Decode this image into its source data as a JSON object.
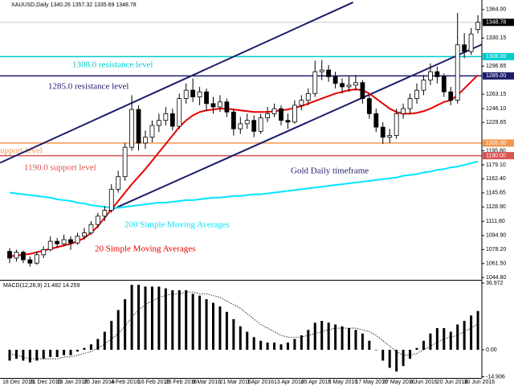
{
  "chart_data": [
    {
      "type": "candlestick",
      "title": "XAUUSD,Daily  1340.26 1357.32 1335.69 1348.78",
      "annotation": "Gold Daily timeframe",
      "categories": [
        "18 Dec 2015",
        null,
        null,
        null,
        "31 Dec 2015",
        null,
        null,
        null,
        "13 Jan 2016",
        null,
        null,
        null,
        "25 Jan 2016",
        null,
        null,
        null,
        "4 Feb 2016",
        null,
        null,
        null,
        "16 Feb 2016",
        null,
        null,
        null,
        "26 Feb 2016",
        null,
        null,
        null,
        "9 Mar 2016",
        null,
        null,
        null,
        "21 Mar 2016",
        null,
        null,
        null,
        "1 Apr 2016",
        null,
        null,
        null,
        "13 Apr 2016",
        null,
        null,
        null,
        "25 Apr 2016",
        null,
        null,
        null,
        "5 May 2016",
        null,
        null,
        null,
        "17 May 2016",
        null,
        null,
        null,
        "27 May 2016",
        null,
        null,
        null,
        "8 Jun 2016",
        null,
        null,
        null,
        "20 Jun 2016",
        null,
        null,
        null,
        "30 Jun 2016",
        null
      ],
      "candles": [
        [
          1076,
          1080,
          1062,
          1068
        ],
        [
          1068,
          1078,
          1064,
          1075
        ],
        [
          1075,
          1077,
          1062,
          1066
        ],
        [
          1066,
          1070,
          1058,
          1062
        ],
        [
          1062,
          1076,
          1060,
          1072
        ],
        [
          1072,
          1082,
          1068,
          1078
        ],
        [
          1078,
          1094,
          1076,
          1088
        ],
        [
          1088,
          1092,
          1080,
          1085
        ],
        [
          1085,
          1096,
          1082,
          1090
        ],
        [
          1090,
          1094,
          1078,
          1086
        ],
        [
          1086,
          1098,
          1084,
          1094
        ],
        [
          1094,
          1104,
          1090,
          1098
        ],
        [
          1098,
          1112,
          1096,
          1108
        ],
        [
          1108,
          1122,
          1104,
          1118
        ],
        [
          1118,
          1130,
          1112,
          1125
        ],
        [
          1125,
          1156,
          1122,
          1150
        ],
        [
          1150,
          1172,
          1146,
          1165
        ],
        [
          1165,
          1205,
          1160,
          1200
        ],
        [
          1200,
          1262,
          1196,
          1245
        ],
        [
          1245,
          1250,
          1196,
          1205
        ],
        [
          1205,
          1220,
          1198,
          1212
        ],
        [
          1212,
          1232,
          1206,
          1226
        ],
        [
          1226,
          1240,
          1218,
          1232
        ],
        [
          1232,
          1248,
          1226,
          1240
        ],
        [
          1240,
          1246,
          1220,
          1225
        ],
        [
          1225,
          1264,
          1222,
          1258
        ],
        [
          1258,
          1276,
          1252,
          1268
        ],
        [
          1268,
          1282,
          1254,
          1260
        ],
        [
          1260,
          1272,
          1250,
          1266
        ],
        [
          1266,
          1270,
          1244,
          1252
        ],
        [
          1252,
          1260,
          1240,
          1248
        ],
        [
          1248,
          1262,
          1242,
          1254
        ],
        [
          1254,
          1258,
          1236,
          1242
        ],
        [
          1242,
          1246,
          1214,
          1222
        ],
        [
          1222,
          1236,
          1216,
          1228
        ],
        [
          1228,
          1240,
          1222,
          1232
        ],
        [
          1232,
          1238,
          1212,
          1219
        ],
        [
          1219,
          1240,
          1216,
          1235
        ],
        [
          1235,
          1248,
          1230,
          1240
        ],
        [
          1240,
          1252,
          1236,
          1246
        ],
        [
          1246,
          1250,
          1226,
          1232
        ],
        [
          1232,
          1240,
          1222,
          1230
        ],
        [
          1230,
          1256,
          1228,
          1250
        ],
        [
          1250,
          1262,
          1244,
          1256
        ],
        [
          1256,
          1270,
          1250,
          1264
        ],
        [
          1264,
          1303,
          1260,
          1290
        ],
        [
          1290,
          1304,
          1280,
          1292
        ],
        [
          1292,
          1298,
          1278,
          1284
        ],
        [
          1284,
          1290,
          1270,
          1276
        ],
        [
          1276,
          1282,
          1264,
          1272
        ],
        [
          1272,
          1284,
          1266,
          1274
        ],
        [
          1274,
          1286,
          1268,
          1277
        ],
        [
          1277,
          1280,
          1252,
          1258
        ],
        [
          1258,
          1262,
          1234,
          1240
        ],
        [
          1240,
          1246,
          1218,
          1224
        ],
        [
          1224,
          1230,
          1204,
          1212
        ],
        [
          1212,
          1222,
          1205,
          1214
        ],
        [
          1214,
          1246,
          1210,
          1240
        ],
        [
          1240,
          1252,
          1234,
          1246
        ],
        [
          1246,
          1264,
          1240,
          1258
        ],
        [
          1258,
          1276,
          1252,
          1268
        ],
        [
          1268,
          1286,
          1262,
          1280
        ],
        [
          1280,
          1300,
          1274,
          1290
        ],
        [
          1290,
          1296,
          1276,
          1284
        ],
        [
          1284,
          1288,
          1260,
          1266
        ],
        [
          1266,
          1272,
          1250,
          1256
        ],
        [
          1256,
          1360,
          1252,
          1322
        ],
        [
          1322,
          1336,
          1306,
          1314
        ],
        [
          1314,
          1342,
          1310,
          1335
        ],
        [
          1340.26,
          1357.32,
          1335.69,
          1348.78
        ]
      ],
      "last_price_label": "1348.78",
      "series": [
        {
          "name": "200 Simple Moving Averages",
          "color": "#00e5ff",
          "values": [
            1146,
            1145,
            1144,
            1143,
            1142,
            1141,
            1140,
            1138,
            1137,
            1136,
            1134,
            1133,
            1131,
            1130,
            1129,
            1128,
            1128,
            1129,
            1130,
            1131,
            1132,
            1133,
            1134,
            1134,
            1135,
            1136,
            1137,
            1137,
            1138,
            1139,
            1140,
            1140,
            1141,
            1142,
            1142,
            1143,
            1144,
            1144,
            1145,
            1146,
            1147,
            1148,
            1149,
            1150,
            1151,
            1152,
            1153,
            1154,
            1155,
            1156,
            1157,
            1158,
            1159,
            1160,
            1161,
            1162,
            1163,
            1164,
            1166,
            1167,
            1168,
            1170,
            1171,
            1173,
            1174,
            1176,
            1177,
            1179,
            1181,
            1183
          ]
        },
        {
          "name": "20 Simple Moving Averages",
          "color": "#e60000",
          "values": [
            1070,
            1071,
            1072,
            1073,
            1075,
            1077,
            1079,
            1081,
            1083,
            1085,
            1088,
            1092,
            1098,
            1106,
            1116,
            1126,
            1136,
            1146,
            1156,
            1165,
            1174,
            1184,
            1194,
            1204,
            1214,
            1224,
            1232,
            1238,
            1242,
            1244,
            1245,
            1246,
            1246,
            1245,
            1244,
            1243,
            1242,
            1242,
            1242,
            1243,
            1244,
            1245,
            1247,
            1249,
            1252,
            1255,
            1258,
            1261,
            1264,
            1266,
            1268,
            1269,
            1268,
            1264,
            1258,
            1252,
            1246,
            1242,
            1240,
            1240,
            1241,
            1243,
            1246,
            1250,
            1254,
            1256,
            1262,
            1270,
            1278,
            1286
          ]
        }
      ],
      "levels": [
        {
          "name": "1308.0 resistance level",
          "value": 1308,
          "value_label": "1308.00",
          "color": "#00cccc"
        },
        {
          "name": "1285.0 resistance level",
          "value": 1285,
          "value_label": "1285.00",
          "color": "#1c1c6b"
        },
        {
          "name": "upport level",
          "value": 1205,
          "value_label": "1205.00",
          "color": "#f5964f"
        },
        {
          "name": "1190.0 support level",
          "value": 1190,
          "value_label": "1190.00",
          "color": "#d9534f"
        }
      ],
      "trendlines": [
        {
          "x": [
            -1.4,
            50.6
          ],
          "y": [
            1181.5,
            1372.6
          ],
          "color": "#1c1c6b"
        },
        {
          "x": [
            14.6,
            71
          ],
          "y": [
            1124.1,
            1327.5
          ],
          "color": "#1c1c6b"
        }
      ],
      "ylim": [
        1040.2,
        1375.4
      ],
      "yticks": [
        {
          "value": 1044.8,
          "label": "1044.80"
        },
        {
          "value": 1061.5,
          "label": "1061.50"
        },
        {
          "value": 1078.2,
          "label": "1078.20"
        },
        {
          "value": 1094.9,
          "label": "1094.90"
        },
        {
          "value": 1111.8,
          "label": "1111.80"
        },
        {
          "value": 1128.9,
          "label": "1128.90"
        },
        {
          "value": 1145.65,
          "label": "1145.65"
        },
        {
          "value": 1162.4,
          "label": "1162.40"
        },
        {
          "value": 1179.1,
          "label": "1179.10"
        },
        {
          "value": 1195.8,
          "label": "1195.80"
        },
        {
          "value": 1229.65,
          "label": "1229.65"
        },
        {
          "value": 1246.1,
          "label": "1246.10"
        },
        {
          "value": 1263.15,
          "label": "1263.15"
        },
        {
          "value": 1296.65,
          "label": "1296.65"
        },
        {
          "value": 1330.15,
          "label": "1330.15"
        },
        {
          "value": 1364,
          "label": "1364.00"
        }
      ]
    },
    {
      "type": "bar",
      "title": "MACD(12,26,9) 21.482 14.259",
      "color": "#000000",
      "values": [
        -6,
        -5,
        -6,
        -7,
        -6,
        -5,
        -4,
        -4,
        -3,
        -3,
        -1,
        1,
        3,
        6,
        10,
        16,
        22,
        28,
        36,
        36,
        35,
        35,
        35,
        34,
        33,
        33,
        33,
        31,
        30,
        28,
        26,
        24,
        21,
        17,
        13,
        10,
        7,
        5,
        4,
        4,
        3,
        4,
        6,
        8,
        11,
        15,
        16,
        15,
        14,
        13,
        12,
        11,
        9,
        5,
        0,
        -6,
        -10,
        -12,
        -9,
        -5,
        1,
        5,
        9,
        12,
        12,
        10,
        14,
        16,
        19,
        21.482
      ],
      "series": [
        {
          "color": "#000000",
          "style": "dotted",
          "values": [
            -2,
            -3,
            -4,
            -5,
            -5,
            -5,
            -5,
            -5,
            -4,
            -4,
            -3,
            -2,
            -1,
            1,
            3,
            6,
            9,
            13,
            18,
            22,
            25,
            27,
            29,
            30,
            31,
            31,
            32,
            32,
            31,
            31,
            30,
            29,
            27,
            25,
            23,
            20,
            17,
            14,
            12,
            10,
            8,
            7,
            7,
            7,
            8,
            9,
            10,
            11,
            12,
            12,
            12,
            12,
            11,
            10,
            8,
            5,
            2,
            -1,
            -3,
            -3,
            -2,
            0,
            2,
            4,
            6,
            7,
            8,
            10,
            12,
            14.259
          ]
        }
      ],
      "ylim": [
        -15.6,
        37.85
      ],
      "yticks": [
        36.972,
        {
          "value": 0,
          "label": "0.00"
        },
        -14.906
      ]
    }
  ]
}
